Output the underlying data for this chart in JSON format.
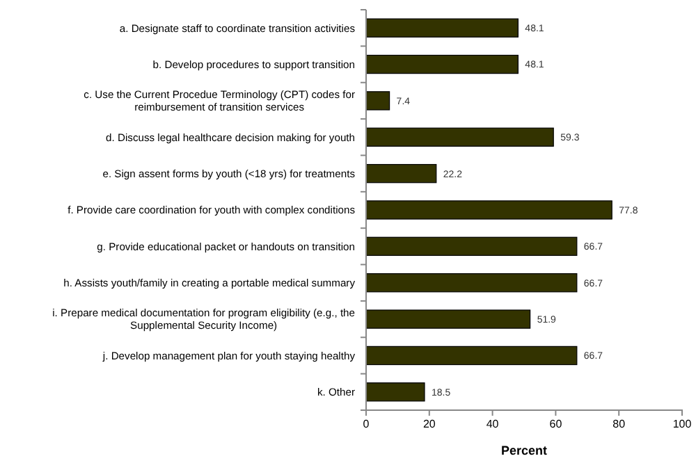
{
  "chart_data": {
    "type": "bar",
    "orientation": "horizontal",
    "xlabel": "Percent",
    "categories": [
      "a. Designate staff to coordinate transition activities",
      "b. Develop procedures to support transition",
      "c. Use the Current Procedue Terminology (CPT) codes for reimbursement of transition services",
      "d. Discuss legal healthcare decision making for youth",
      "e. Sign assent forms by youth (<18 yrs) for treatments",
      "f. Provide care coordination for youth with complex conditions",
      "g. Provide educational packet or handouts on transition",
      "h. Assists youth/family in creating a portable medical summary",
      "i. Prepare medical documentation for program eligibility (e.g., the Supplemental Security Income)",
      "j. Develop management plan for youth staying healthy",
      "k. Other"
    ],
    "values": [
      48.1,
      48.1,
      7.4,
      59.3,
      22.2,
      77.8,
      66.7,
      66.7,
      51.9,
      66.7,
      18.5
    ],
    "color": "#333300",
    "data_labels": true,
    "grid": false,
    "xlim": [
      0,
      100
    ],
    "xticks": [
      0,
      20,
      40,
      60,
      80,
      100
    ]
  }
}
